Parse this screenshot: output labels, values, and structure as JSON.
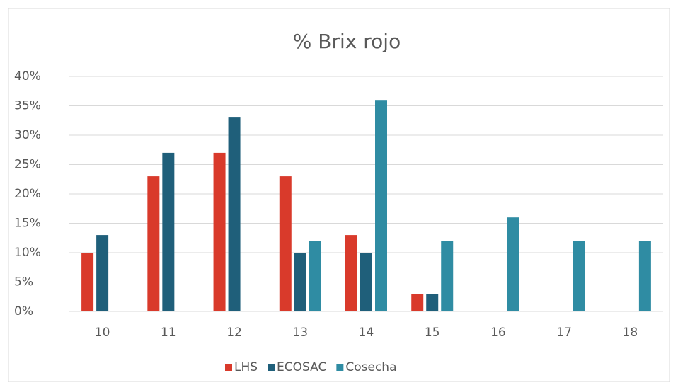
{
  "chart_data": {
    "type": "bar",
    "title": "% Brix rojo",
    "categories": [
      "10",
      "11",
      "12",
      "13",
      "14",
      "15",
      "16",
      "17",
      "18"
    ],
    "series": [
      {
        "name": "LHS",
        "color": "#d93a2b",
        "values": [
          10,
          23,
          27,
          23,
          13,
          3,
          0,
          0,
          0
        ]
      },
      {
        "name": "ECOSAC",
        "color": "#1f5f7a",
        "values": [
          13,
          27,
          33,
          10,
          10,
          3,
          0,
          0,
          0
        ]
      },
      {
        "name": "Cosecha",
        "color": "#2f8ca3",
        "values": [
          0,
          0,
          0,
          12,
          36,
          12,
          16,
          12,
          12
        ]
      }
    ],
    "ylim": [
      0,
      40
    ],
    "yticks": [
      {
        "value": 0,
        "label": "0%"
      },
      {
        "value": 5,
        "label": "5%"
      },
      {
        "value": 10,
        "label": "10%"
      },
      {
        "value": 15,
        "label": "15%"
      },
      {
        "value": 20,
        "label": "20%"
      },
      {
        "value": 25,
        "label": "25%"
      },
      {
        "value": 30,
        "label": "30%"
      },
      {
        "value": 35,
        "label": "35%"
      },
      {
        "value": 40,
        "label": "40%"
      }
    ],
    "grid": true,
    "legend": "bottom"
  }
}
